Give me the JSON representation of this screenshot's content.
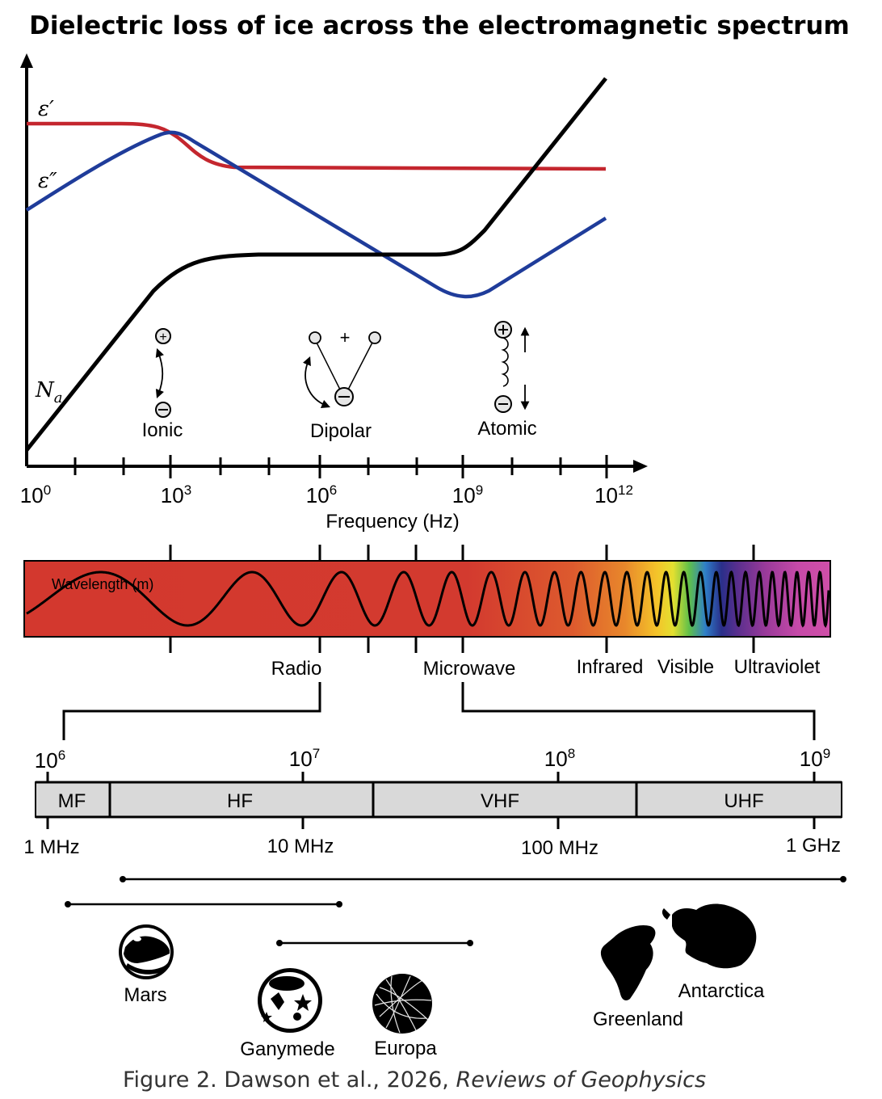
{
  "title": "Dielectric loss of ice across the electromagnetic spectrum",
  "colors": {
    "epsilon_prime": "#c4262e",
    "epsilon_double_prime": "#1f3c9a",
    "absorption": "#000000",
    "spectrum_base": "#d53a2f"
  },
  "top_plot": {
    "curve_labels": {
      "epsilon_prime": "ε′",
      "epsilon_double_prime": "ε″",
      "absorption": "N",
      "absorption_sub": "a"
    },
    "xaxis": {
      "label": "Frequency (Hz)",
      "ticks": [
        {
          "base": "10",
          "exp": "0"
        },
        {
          "base": "10",
          "exp": "3"
        },
        {
          "base": "10",
          "exp": "6"
        },
        {
          "base": "10",
          "exp": "9"
        },
        {
          "base": "10",
          "exp": "12"
        }
      ]
    },
    "mechanisms": [
      "Ionic",
      "Dipolar",
      "Atomic"
    ],
    "symbols": {
      "plus": "+",
      "positive": "⊕",
      "negative": "⊖"
    }
  },
  "chart_data": {
    "type": "line",
    "title": "Dielectric loss of ice across the electromagnetic spectrum",
    "xlabel": "Frequency (Hz)",
    "ylabel": "",
    "xscale": "log10",
    "xlim": [
      0,
      12.5
    ],
    "ylim": [
      0,
      1
    ],
    "series": [
      {
        "name": "ε′",
        "x_log10": [
          0,
          2,
          2.6,
          3.0,
          3.5,
          4.2,
          5,
          8,
          12
        ],
        "values": [
          0.91,
          0.91,
          0.905,
          0.88,
          0.79,
          0.74,
          0.74,
          0.74,
          0.74
        ]
      },
      {
        "name": "ε″",
        "x_log10": [
          0,
          1.5,
          2.5,
          3.0,
          4.0,
          6,
          8,
          8.9,
          9.3,
          10.5,
          12
        ],
        "values": [
          0.63,
          0.74,
          0.83,
          0.84,
          0.77,
          0.61,
          0.44,
          0.41,
          0.43,
          0.56,
          0.65
        ]
      },
      {
        "name": "N_a",
        "x_log10": [
          0,
          1,
          2,
          2.7,
          3.3,
          4.3,
          6,
          8,
          8.8,
          9.3,
          10.5,
          12
        ],
        "values": [
          0.04,
          0.17,
          0.34,
          0.44,
          0.5,
          0.53,
          0.535,
          0.535,
          0.55,
          0.6,
          0.8,
          0.98
        ]
      }
    ]
  },
  "spectrum_bar": {
    "wavelength_label": "Wavelength (m)",
    "bands": [
      "Radio",
      "Microwave",
      "Infrared",
      "Visible",
      "Ultraviolet"
    ]
  },
  "radar_scale": {
    "exponent_ticks": [
      {
        "base": "10",
        "exp": "6"
      },
      {
        "base": "10",
        "exp": "7"
      },
      {
        "base": "10",
        "exp": "8"
      },
      {
        "base": "10",
        "exp": "9"
      }
    ],
    "frequency_labels": [
      "1 MHz",
      "10 MHz",
      "100 MHz",
      "1 GHz"
    ],
    "bands": [
      "MF",
      "HF",
      "VHF",
      "UHF"
    ]
  },
  "bodies": [
    "Mars",
    "Ganymede",
    "Europa",
    "Greenland",
    "Antarctica"
  ],
  "caption": {
    "prefix": "Figure 2. Dawson et al., 2026, ",
    "journal": "Reviews of Geophysics"
  }
}
